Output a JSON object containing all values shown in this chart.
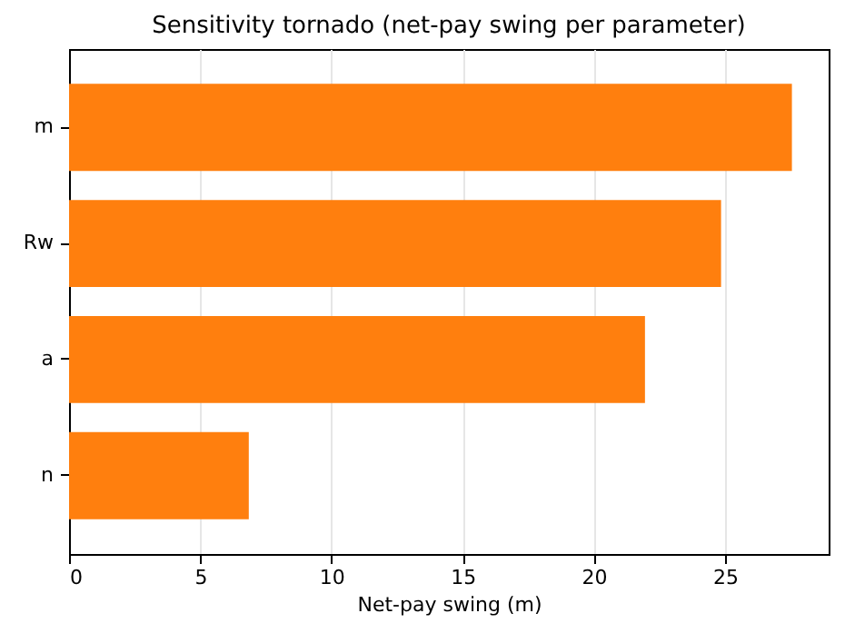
{
  "chart_data": {
    "type": "bar",
    "orientation": "horizontal",
    "title": "Sensitivity tornado (net-pay swing per parameter)",
    "xlabel": "Net-pay swing (m)",
    "categories": [
      "m",
      "Rw",
      "a",
      "n"
    ],
    "values": [
      27.55,
      24.85,
      21.95,
      6.85
    ],
    "color": "#ff7f0e",
    "xlim": [
      0,
      28.95
    ],
    "xticks": [
      0,
      5,
      10,
      15,
      20,
      25
    ],
    "grid": "x"
  }
}
